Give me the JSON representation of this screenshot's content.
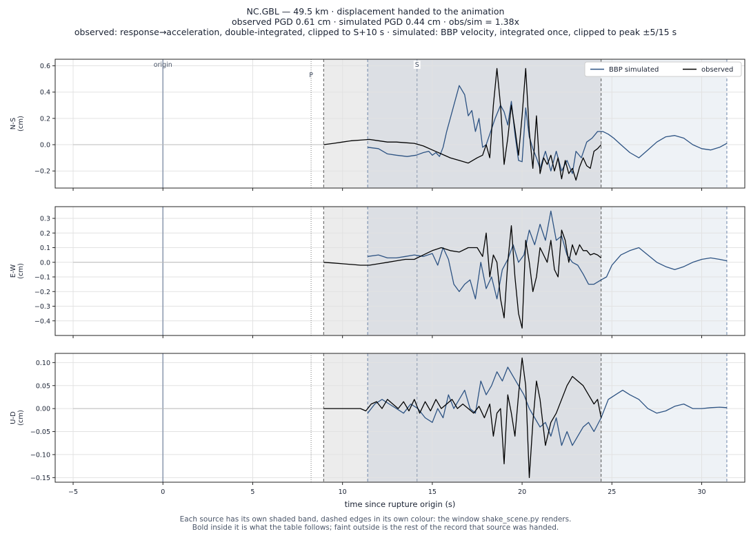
{
  "title_lines": [
    "NC.GBL  —  49.5 km   ·   displacement handed to the animation",
    "observed PGD 0.61 cm   ·   simulated PGD 0.44 cm   ·   obs/sim = 1.38x",
    "observed: response→acceleration, double-integrated, clipped to S+10 s   ·   simulated: BBP velocity, integrated once, clipped to peak ±5/15 s"
  ],
  "footer_lines": [
    "Each source has its own shaded band, dashed edges in its own colour: the window shake_scene.py renders.",
    "Bold inside it is what the table follows;   faint outside is the rest of the record that source was handed."
  ],
  "colors": {
    "simulated": "#2c5282",
    "observed": "#000000",
    "obs_band": "#ececec",
    "overlap_band": "#dcdfe4",
    "sim_band": "#eef2f6",
    "grid": "#e2e2e2",
    "marker": "#8a97ad"
  },
  "chart_data": {
    "type": "line",
    "xlabel": "time since rupture origin (s)",
    "xlim": [
      -6,
      32.4
    ],
    "xticks": [
      -5,
      0,
      5,
      10,
      15,
      20,
      25,
      30
    ],
    "legend": {
      "placement": "top-right",
      "entries": [
        "BBP simulated",
        "observed"
      ]
    },
    "grid": true,
    "markers": [
      {
        "label": "origin",
        "t": 0
      },
      {
        "label": "P",
        "t": 8.25
      },
      {
        "label": "S",
        "t": 14.15
      }
    ],
    "windows": {
      "observed": [
        8.95,
        24.4
      ],
      "simulated": [
        11.4,
        31.4
      ]
    },
    "panels": [
      {
        "ylabel": "N-S\n(cm)",
        "ylim": [
          -0.33,
          0.65
        ],
        "yticks": [
          -0.2,
          0.0,
          0.2,
          0.4,
          0.6
        ],
        "series": [
          {
            "name": "BBP simulated",
            "t": [
              11.4,
              12.0,
              12.5,
              13.0,
              13.6,
              14.1,
              14.5,
              14.8,
              15.0,
              15.2,
              15.4,
              15.6,
              15.8,
              16.0,
              16.2,
              16.5,
              16.8,
              17.0,
              17.2,
              17.4,
              17.6,
              17.8,
              18.0,
              18.2,
              18.5,
              18.8,
              19.0,
              19.2,
              19.4,
              19.6,
              19.8,
              20.0,
              20.2,
              20.4,
              20.6,
              20.8,
              21.0,
              21.3,
              21.6,
              21.9,
              22.2,
              22.5,
              22.8,
              23.0,
              23.3,
              23.6,
              23.9,
              24.2,
              24.5,
              24.8,
              25.1,
              25.5,
              26.0,
              26.5,
              27.0,
              27.5,
              28.0,
              28.5,
              29.0,
              29.5,
              30.0,
              30.5,
              31.0,
              31.4
            ],
            "v": [
              -0.02,
              -0.03,
              -0.07,
              -0.08,
              -0.09,
              -0.08,
              -0.06,
              -0.05,
              -0.08,
              -0.06,
              -0.09,
              -0.02,
              0.1,
              0.2,
              0.3,
              0.45,
              0.38,
              0.22,
              0.26,
              0.1,
              0.2,
              -0.02,
              0.0,
              0.08,
              0.2,
              0.3,
              0.25,
              0.15,
              0.33,
              0.08,
              -0.12,
              -0.13,
              0.28,
              0.06,
              -0.03,
              -0.1,
              -0.18,
              -0.05,
              -0.2,
              -0.05,
              -0.2,
              -0.12,
              -0.22,
              -0.05,
              -0.1,
              0.02,
              0.05,
              0.1,
              0.1,
              0.08,
              0.05,
              0.0,
              -0.06,
              -0.1,
              -0.04,
              0.02,
              0.06,
              0.07,
              0.05,
              0.0,
              -0.03,
              -0.04,
              -0.02,
              0.01
            ]
          },
          {
            "name": "observed",
            "t": [
              8.95,
              9.5,
              10.0,
              10.5,
              11.0,
              11.5,
              12.0,
              12.5,
              13.0,
              13.5,
              14.0,
              14.5,
              15.0,
              15.5,
              16.0,
              16.5,
              17.0,
              17.5,
              17.8,
              18.0,
              18.2,
              18.4,
              18.6,
              18.8,
              19.0,
              19.2,
              19.4,
              19.6,
              19.8,
              20.0,
              20.2,
              20.4,
              20.6,
              20.8,
              21.0,
              21.2,
              21.4,
              21.6,
              21.8,
              22.0,
              22.2,
              22.4,
              22.6,
              22.8,
              23.0,
              23.2,
              23.4,
              23.6,
              23.8,
              24.0,
              24.2,
              24.4
            ],
            "v": [
              0.0,
              0.01,
              0.02,
              0.03,
              0.035,
              0.04,
              0.03,
              0.02,
              0.02,
              0.015,
              0.01,
              -0.01,
              -0.04,
              -0.07,
              -0.1,
              -0.12,
              -0.14,
              -0.1,
              -0.08,
              0.0,
              -0.1,
              0.3,
              0.58,
              0.3,
              -0.15,
              0.05,
              0.3,
              0.12,
              -0.08,
              0.22,
              0.58,
              0.1,
              -0.18,
              0.22,
              -0.22,
              -0.1,
              -0.15,
              -0.08,
              -0.2,
              -0.1,
              -0.26,
              -0.12,
              -0.22,
              -0.18,
              -0.27,
              -0.17,
              -0.1,
              -0.16,
              -0.18,
              -0.05,
              -0.03,
              0.0
            ]
          }
        ]
      },
      {
        "ylabel": "E-W\n(cm)",
        "ylim": [
          -0.5,
          0.38
        ],
        "yticks": [
          -0.4,
          -0.3,
          -0.2,
          -0.1,
          0.0,
          0.1,
          0.2,
          0.3
        ],
        "series": [
          {
            "name": "BBP simulated",
            "t": [
              11.4,
              12.0,
              12.5,
              13.0,
              13.5,
              14.0,
              14.5,
              15.0,
              15.3,
              15.6,
              15.9,
              16.2,
              16.5,
              16.8,
              17.1,
              17.4,
              17.7,
              18.0,
              18.3,
              18.6,
              18.9,
              19.2,
              19.5,
              19.8,
              20.1,
              20.4,
              20.7,
              21.0,
              21.3,
              21.6,
              21.9,
              22.2,
              22.5,
              22.8,
              23.1,
              23.4,
              23.7,
              24.0,
              24.4,
              24.7,
              25.0,
              25.5,
              26.0,
              26.5,
              27.0,
              27.5,
              28.0,
              28.5,
              29.0,
              29.5,
              30.0,
              30.5,
              31.0,
              31.4
            ],
            "v": [
              0.04,
              0.05,
              0.03,
              0.03,
              0.04,
              0.05,
              0.04,
              0.06,
              -0.02,
              0.1,
              0.02,
              -0.15,
              -0.2,
              -0.15,
              -0.12,
              -0.25,
              0.0,
              -0.18,
              -0.1,
              -0.25,
              -0.05,
              0.02,
              0.12,
              0.0,
              0.05,
              0.22,
              0.12,
              0.26,
              0.15,
              0.35,
              0.15,
              0.18,
              0.05,
              0.0,
              -0.02,
              -0.08,
              -0.15,
              -0.15,
              -0.12,
              -0.1,
              -0.02,
              0.05,
              0.08,
              0.1,
              0.05,
              0.0,
              -0.03,
              -0.05,
              -0.03,
              0.0,
              0.02,
              0.03,
              0.02,
              0.01
            ]
          },
          {
            "name": "observed",
            "t": [
              8.95,
              9.5,
              10.0,
              10.5,
              11.0,
              11.5,
              12.0,
              12.5,
              13.0,
              13.5,
              14.0,
              14.5,
              15.0,
              15.5,
              16.0,
              16.5,
              17.0,
              17.5,
              17.8,
              18.0,
              18.2,
              18.4,
              18.6,
              18.8,
              19.0,
              19.2,
              19.4,
              19.6,
              19.8,
              20.0,
              20.2,
              20.4,
              20.6,
              20.8,
              21.0,
              21.2,
              21.4,
              21.6,
              21.8,
              22.0,
              22.2,
              22.4,
              22.6,
              22.8,
              23.0,
              23.2,
              23.4,
              23.6,
              23.8,
              24.0,
              24.2,
              24.4
            ],
            "v": [
              0.0,
              -0.005,
              -0.01,
              -0.015,
              -0.02,
              -0.02,
              -0.01,
              0.0,
              0.01,
              0.02,
              0.02,
              0.05,
              0.08,
              0.1,
              0.08,
              0.07,
              0.1,
              0.1,
              0.04,
              0.2,
              -0.1,
              0.05,
              0.0,
              -0.25,
              -0.38,
              0.0,
              0.25,
              -0.1,
              -0.35,
              -0.45,
              0.15,
              0.0,
              -0.2,
              -0.1,
              0.1,
              0.05,
              0.0,
              0.15,
              -0.05,
              -0.1,
              0.22,
              0.15,
              0.0,
              0.12,
              0.05,
              0.12,
              0.08,
              0.08,
              0.05,
              0.06,
              0.05,
              0.03
            ]
          }
        ]
      },
      {
        "ylabel": "U-D\n(cm)",
        "ylim": [
          -0.16,
          0.12
        ],
        "yticks": [
          -0.15,
          -0.1,
          -0.05,
          0.0,
          0.05,
          0.1
        ],
        "series": [
          {
            "name": "BBP simulated",
            "t": [
              11.4,
              11.8,
              12.2,
              12.6,
              13.0,
              13.4,
              13.8,
              14.2,
              14.6,
              15.0,
              15.3,
              15.6,
              15.9,
              16.2,
              16.5,
              16.8,
              17.1,
              17.4,
              17.7,
              18.0,
              18.3,
              18.6,
              18.9,
              19.2,
              19.5,
              19.8,
              20.1,
              20.4,
              20.7,
              21.0,
              21.3,
              21.6,
              21.9,
              22.2,
              22.5,
              22.8,
              23.1,
              23.4,
              23.7,
              24.0,
              24.4,
              24.8,
              25.2,
              25.6,
              26.0,
              26.5,
              27.0,
              27.5,
              28.0,
              28.5,
              29.0,
              29.5,
              30.0,
              30.5,
              31.0,
              31.4
            ],
            "v": [
              -0.01,
              0.01,
              0.02,
              0.01,
              0.0,
              -0.01,
              0.01,
              0.0,
              -0.02,
              -0.03,
              0.0,
              -0.02,
              0.03,
              0.0,
              0.02,
              0.04,
              0.0,
              -0.01,
              0.06,
              0.03,
              0.05,
              0.08,
              0.06,
              0.09,
              0.07,
              0.05,
              0.03,
              0.0,
              -0.02,
              -0.04,
              -0.03,
              -0.06,
              -0.02,
              -0.08,
              -0.05,
              -0.08,
              -0.06,
              -0.04,
              -0.03,
              -0.05,
              -0.02,
              0.02,
              0.03,
              0.04,
              0.03,
              0.02,
              0.0,
              -0.01,
              -0.005,
              0.005,
              0.01,
              0.0,
              0.0,
              0.002,
              0.003,
              0.002
            ]
          },
          {
            "name": "observed",
            "t": [
              8.95,
              9.5,
              10.0,
              10.5,
              11.0,
              11.3,
              11.6,
              11.9,
              12.2,
              12.5,
              12.8,
              13.1,
              13.4,
              13.7,
              14.0,
              14.3,
              14.6,
              14.9,
              15.2,
              15.5,
              15.8,
              16.1,
              16.4,
              16.7,
              17.0,
              17.3,
              17.6,
              17.9,
              18.2,
              18.4,
              18.6,
              18.8,
              19.0,
              19.2,
              19.4,
              19.6,
              19.8,
              20.0,
              20.2,
              20.4,
              20.6,
              20.8,
              21.0,
              21.3,
              21.6,
              21.9,
              22.2,
              22.5,
              22.8,
              23.1,
              23.4,
              23.7,
              24.0,
              24.2,
              24.4
            ],
            "v": [
              0.0,
              0.0,
              0.0,
              0.0,
              0.0,
              -0.005,
              0.01,
              0.015,
              0.0,
              0.02,
              0.01,
              0.0,
              0.015,
              -0.005,
              0.02,
              -0.01,
              0.015,
              -0.005,
              0.02,
              0.0,
              0.01,
              0.02,
              0.0,
              0.01,
              0.0,
              -0.01,
              0.005,
              -0.02,
              0.01,
              -0.06,
              -0.01,
              0.0,
              -0.12,
              0.03,
              -0.01,
              -0.06,
              0.03,
              0.11,
              0.05,
              -0.15,
              -0.03,
              0.06,
              0.02,
              -0.08,
              -0.03,
              -0.01,
              0.02,
              0.05,
              0.07,
              0.06,
              0.05,
              0.03,
              0.01,
              0.02,
              -0.02
            ]
          }
        ]
      }
    ]
  }
}
